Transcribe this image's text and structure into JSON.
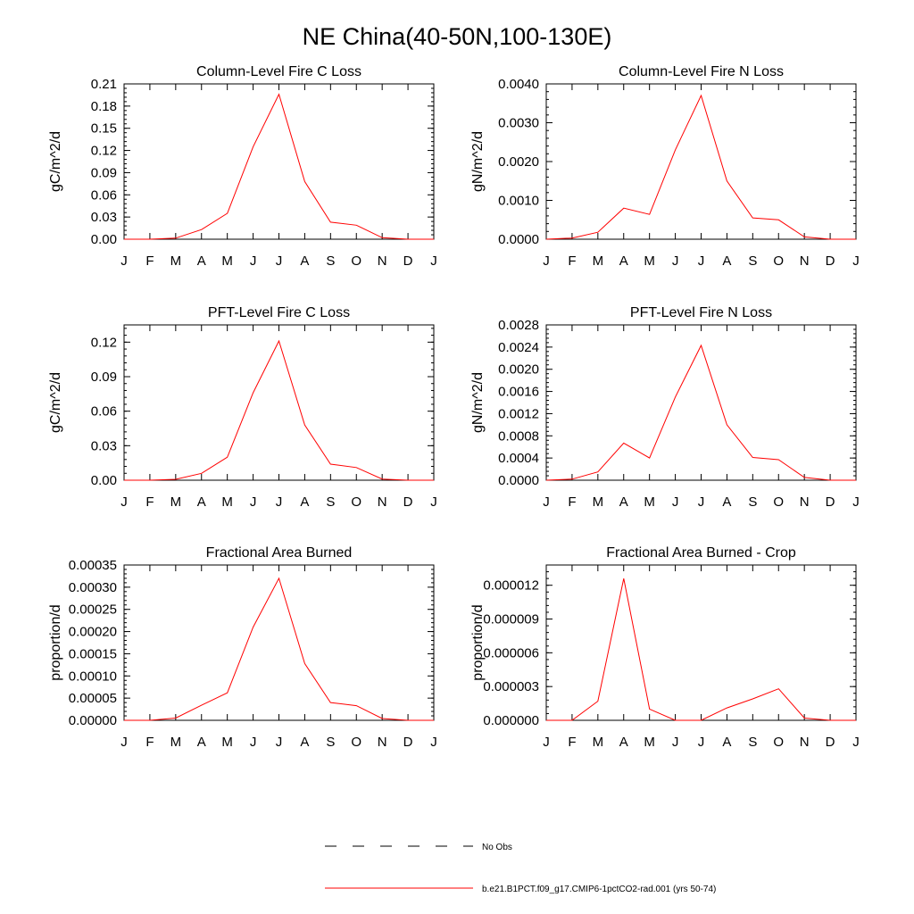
{
  "title": "NE China(40-50N,100-130E)",
  "legend": [
    {
      "label": "No Obs",
      "color": "#000000",
      "style": "dashed"
    },
    {
      "label": "b.e21.B1PCT.f09_g17.CMIP6-1pctCO2-rad.001 (yrs 50-74)",
      "color": "#ff0000",
      "style": "solid"
    }
  ],
  "chart_data": [
    {
      "type": "line",
      "title": "Column-Level Fire C Loss",
      "ylabel": "gC/m^2/d",
      "xlabel": "",
      "categories": [
        "J",
        "F",
        "M",
        "A",
        "M",
        "J",
        "J",
        "A",
        "S",
        "O",
        "N",
        "D",
        "J"
      ],
      "ylim": [
        0,
        0.21
      ],
      "yticks": [
        "0.00",
        "0.03",
        "0.06",
        "0.09",
        "0.12",
        "0.15",
        "0.18",
        "0.21"
      ],
      "series": [
        {
          "color": "#ff0000",
          "values": [
            0.0,
            0.0,
            0.0015,
            0.013,
            0.035,
            0.125,
            0.196,
            0.078,
            0.023,
            0.019,
            0.002,
            0.0,
            0.0
          ]
        }
      ]
    },
    {
      "type": "line",
      "title": "Column-Level Fire N Loss",
      "ylabel": "gN/m^2/d",
      "xlabel": "",
      "categories": [
        "J",
        "F",
        "M",
        "A",
        "M",
        "J",
        "J",
        "A",
        "S",
        "O",
        "N",
        "D",
        "J"
      ],
      "ylim": [
        0,
        0.004
      ],
      "yticks": [
        "0.0000",
        "0.0010",
        "0.0020",
        "0.0030",
        "0.0040"
      ],
      "series": [
        {
          "color": "#ff0000",
          "values": [
            0.0,
            3e-05,
            0.00018,
            0.0008,
            0.00064,
            0.0023,
            0.0037,
            0.0015,
            0.00055,
            0.0005,
            6e-05,
            0.0,
            0.0
          ]
        }
      ]
    },
    {
      "type": "line",
      "title": "PFT-Level Fire C Loss",
      "ylabel": "gC/m^2/d",
      "xlabel": "",
      "categories": [
        "J",
        "F",
        "M",
        "A",
        "M",
        "J",
        "J",
        "A",
        "S",
        "O",
        "N",
        "D",
        "J"
      ],
      "ylim": [
        0,
        0.135
      ],
      "yticks": [
        "0.00",
        "0.03",
        "0.06",
        "0.09",
        "0.12"
      ],
      "series": [
        {
          "color": "#ff0000",
          "values": [
            0.0,
            0.0,
            0.0008,
            0.006,
            0.02,
            0.076,
            0.121,
            0.048,
            0.014,
            0.011,
            0.001,
            0.0,
            0.0
          ]
        }
      ]
    },
    {
      "type": "line",
      "title": "PFT-Level Fire N Loss",
      "ylabel": "gN/m^2/d",
      "xlabel": "",
      "categories": [
        "J",
        "F",
        "M",
        "A",
        "M",
        "J",
        "J",
        "A",
        "S",
        "O",
        "N",
        "D",
        "J"
      ],
      "ylim": [
        0,
        0.0028
      ],
      "yticks": [
        "0.0000",
        "0.0004",
        "0.0008",
        "0.0012",
        "0.0016",
        "0.0020",
        "0.0024",
        "0.0028"
      ],
      "series": [
        {
          "color": "#ff0000",
          "values": [
            0.0,
            2e-05,
            0.00015,
            0.00067,
            0.0004,
            0.0015,
            0.00243,
            0.001,
            0.00041,
            0.00037,
            5e-05,
            0.0,
            0.0
          ]
        }
      ]
    },
    {
      "type": "line",
      "title": "Fractional Area Burned",
      "ylabel": "proportion/d",
      "xlabel": "",
      "categories": [
        "J",
        "F",
        "M",
        "A",
        "M",
        "J",
        "J",
        "A",
        "S",
        "O",
        "N",
        "D",
        "J"
      ],
      "ylim": [
        0,
        0.00035
      ],
      "yticks": [
        "0.00000",
        "0.00005",
        "0.00010",
        "0.00015",
        "0.00020",
        "0.00025",
        "0.00030",
        "0.00035"
      ],
      "series": [
        {
          "color": "#ff0000",
          "values": [
            0.0,
            0.0,
            5e-06,
            3.4e-05,
            6.2e-05,
            0.00021,
            0.00032,
            0.000128,
            4e-05,
            3.3e-05,
            4e-06,
            0.0,
            0.0
          ]
        }
      ]
    },
    {
      "type": "line",
      "title": "Fractional Area Burned - Crop",
      "ylabel": "proportion/d",
      "xlabel": "",
      "categories": [
        "J",
        "F",
        "M",
        "A",
        "M",
        "J",
        "J",
        "A",
        "S",
        "O",
        "N",
        "D",
        "J"
      ],
      "ylim": [
        0,
        1.38e-05
      ],
      "yticks": [
        "0.000000",
        "0.000003",
        "0.000006",
        "0.000009",
        "0.000012"
      ],
      "series": [
        {
          "color": "#ff0000",
          "values": [
            0.0,
            0.0,
            1.7e-06,
            1.26e-05,
            1e-06,
            0.0,
            0.0,
            1.1e-06,
            1.9e-06,
            2.8e-06,
            2e-07,
            0.0,
            0.0
          ]
        }
      ]
    }
  ]
}
